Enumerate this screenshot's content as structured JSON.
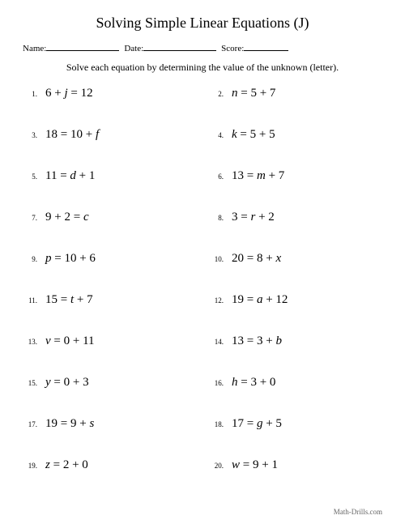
{
  "title": "Solving Simple Linear Equations (J)",
  "header": {
    "name_label": "Name:",
    "date_label": "Date:",
    "score_label": "Score:"
  },
  "instructions": "Solve each equation by determining the value of the unknown (letter).",
  "problems": [
    {
      "n": "1.",
      "lhs_pre": "6 + ",
      "lhs_var": "j",
      "lhs_post": "",
      "rhs_pre": "",
      "rhs_var": "",
      "rhs_post": "12"
    },
    {
      "n": "2.",
      "lhs_pre": "",
      "lhs_var": "n",
      "lhs_post": "",
      "rhs_pre": "5 + 7",
      "rhs_var": "",
      "rhs_post": ""
    },
    {
      "n": "3.",
      "lhs_pre": "18",
      "lhs_var": "",
      "lhs_post": "",
      "rhs_pre": "10 + ",
      "rhs_var": "f",
      "rhs_post": ""
    },
    {
      "n": "4.",
      "lhs_pre": "",
      "lhs_var": "k",
      "lhs_post": "",
      "rhs_pre": "5 + 5",
      "rhs_var": "",
      "rhs_post": ""
    },
    {
      "n": "5.",
      "lhs_pre": "11",
      "lhs_var": "",
      "lhs_post": "",
      "rhs_pre": "",
      "rhs_var": "d",
      "rhs_post": " + 1"
    },
    {
      "n": "6.",
      "lhs_pre": "13",
      "lhs_var": "",
      "lhs_post": "",
      "rhs_pre": "",
      "rhs_var": "m",
      "rhs_post": " + 7"
    },
    {
      "n": "7.",
      "lhs_pre": "9 + 2",
      "lhs_var": "",
      "lhs_post": "",
      "rhs_pre": "",
      "rhs_var": "c",
      "rhs_post": ""
    },
    {
      "n": "8.",
      "lhs_pre": "3",
      "lhs_var": "",
      "lhs_post": "",
      "rhs_pre": "",
      "rhs_var": "r",
      "rhs_post": " + 2"
    },
    {
      "n": "9.",
      "lhs_pre": "",
      "lhs_var": "p",
      "lhs_post": "",
      "rhs_pre": "10 + 6",
      "rhs_var": "",
      "rhs_post": ""
    },
    {
      "n": "10.",
      "lhs_pre": "20",
      "lhs_var": "",
      "lhs_post": "",
      "rhs_pre": "8 + ",
      "rhs_var": "x",
      "rhs_post": ""
    },
    {
      "n": "11.",
      "lhs_pre": "15",
      "lhs_var": "",
      "lhs_post": "",
      "rhs_pre": "",
      "rhs_var": "t",
      "rhs_post": " + 7"
    },
    {
      "n": "12.",
      "lhs_pre": "19",
      "lhs_var": "",
      "lhs_post": "",
      "rhs_pre": "",
      "rhs_var": "a",
      "rhs_post": " + 12"
    },
    {
      "n": "13.",
      "lhs_pre": "",
      "lhs_var": "v",
      "lhs_post": "",
      "rhs_pre": "0 + 11",
      "rhs_var": "",
      "rhs_post": ""
    },
    {
      "n": "14.",
      "lhs_pre": "13",
      "lhs_var": "",
      "lhs_post": "",
      "rhs_pre": "3 + ",
      "rhs_var": "b",
      "rhs_post": ""
    },
    {
      "n": "15.",
      "lhs_pre": "",
      "lhs_var": "y",
      "lhs_post": "",
      "rhs_pre": "0 + 3",
      "rhs_var": "",
      "rhs_post": ""
    },
    {
      "n": "16.",
      "lhs_pre": "",
      "lhs_var": "h",
      "lhs_post": "",
      "rhs_pre": "3 + 0",
      "rhs_var": "",
      "rhs_post": ""
    },
    {
      "n": "17.",
      "lhs_pre": "19",
      "lhs_var": "",
      "lhs_post": "",
      "rhs_pre": "9 + ",
      "rhs_var": "s",
      "rhs_post": ""
    },
    {
      "n": "18.",
      "lhs_pre": "17",
      "lhs_var": "",
      "lhs_post": "",
      "rhs_pre": "",
      "rhs_var": "g",
      "rhs_post": " + 5"
    },
    {
      "n": "19.",
      "lhs_pre": "",
      "lhs_var": "z",
      "lhs_post": "",
      "rhs_pre": "2 + 0",
      "rhs_var": "",
      "rhs_post": ""
    },
    {
      "n": "20.",
      "lhs_pre": "",
      "lhs_var": "w",
      "lhs_post": "",
      "rhs_pre": "9 + 1",
      "rhs_var": "",
      "rhs_post": ""
    }
  ],
  "footer": "Math-Drills.com"
}
